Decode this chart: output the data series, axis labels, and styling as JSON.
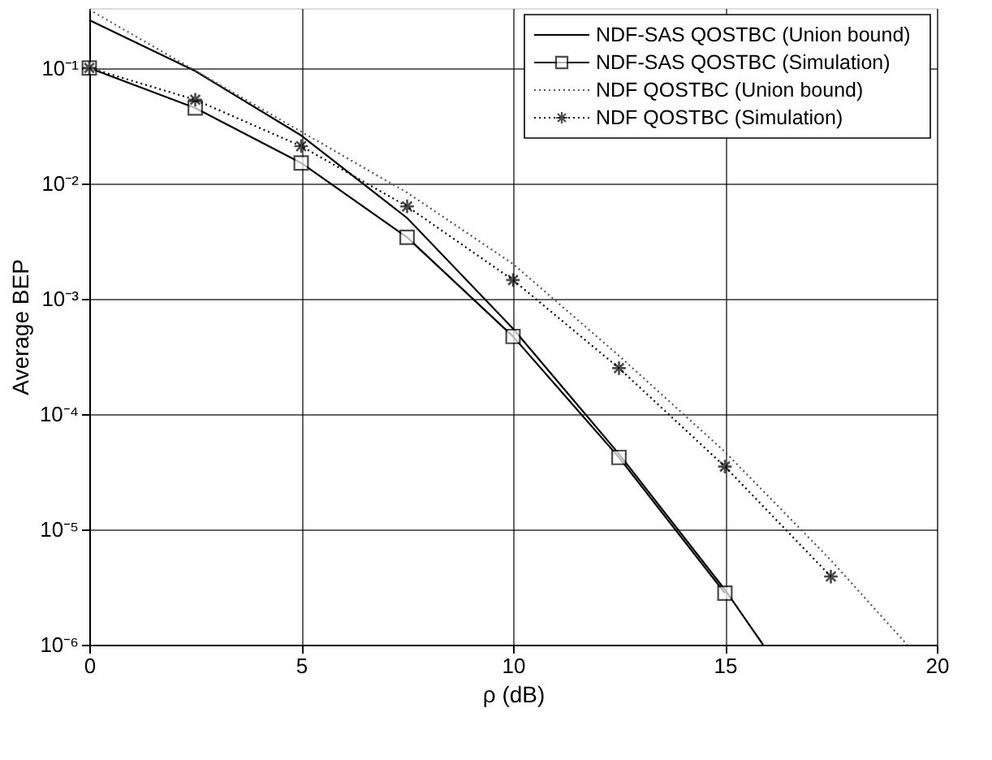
{
  "chart_data": {
    "type": "line",
    "xlabel": "ρ (dB)",
    "ylabel": "Average BEP",
    "log": "y",
    "grid": true,
    "legend": "top right",
    "xlim": [
      0,
      20
    ],
    "xticks": [
      0,
      5,
      10,
      15,
      20
    ],
    "ylim": [
      1e-06,
      0.33
    ],
    "yticks": [
      {
        "value": 1e-06,
        "label": "10⁻⁶"
      },
      {
        "value": 1e-05,
        "label": "10⁻⁵"
      },
      {
        "value": 0.0001,
        "label": "10⁻⁴"
      },
      {
        "value": 0.001,
        "label": "10⁻³"
      },
      {
        "value": 0.01,
        "label": "10⁻²"
      },
      {
        "value": 0.1,
        "label": "10⁻¹"
      }
    ],
    "series": [
      {
        "name": "NDF-SAS QOSTBC (Union bound)",
        "color": "#000000",
        "marker": "none",
        "line_style": "solid",
        "x": [
          0,
          2.5,
          5,
          7.5,
          10,
          12.5,
          15,
          15.9
        ],
        "values": [
          0.26,
          0.094,
          0.026,
          0.005,
          0.00055,
          4.5e-05,
          3e-06,
          1e-06
        ]
      },
      {
        "name": "NDF-SAS QOSTBC (Simulation)",
        "color": "#000000",
        "marker": "square",
        "line_style": "solid",
        "x": [
          0,
          2.5,
          5,
          7.5,
          10,
          12.5,
          15
        ],
        "values": [
          0.1,
          0.045,
          0.015,
          0.0034,
          0.00047,
          4.2e-05,
          2.8e-06
        ]
      },
      {
        "name": "NDF QOSTBC (Union bound)",
        "color": "#555555",
        "marker": "none",
        "line_style": "dotted",
        "x": [
          0,
          5,
          7.5,
          10,
          12.5,
          15,
          17.5,
          19.3
        ],
        "values": [
          0.32,
          0.028,
          0.0083,
          0.002,
          0.00032,
          4.7e-05,
          5.4e-06,
          1e-06
        ]
      },
      {
        "name": "NDF QOSTBC (Simulation)",
        "color": "#000000",
        "marker": "cross",
        "line_style": "dotted",
        "x": [
          0,
          2.5,
          5,
          7.5,
          10,
          12.5,
          15,
          17.5
        ],
        "values": [
          0.1,
          0.053,
          0.021,
          0.0063,
          0.00145,
          0.00025,
          3.5e-05,
          3.9e-06
        ]
      }
    ]
  }
}
